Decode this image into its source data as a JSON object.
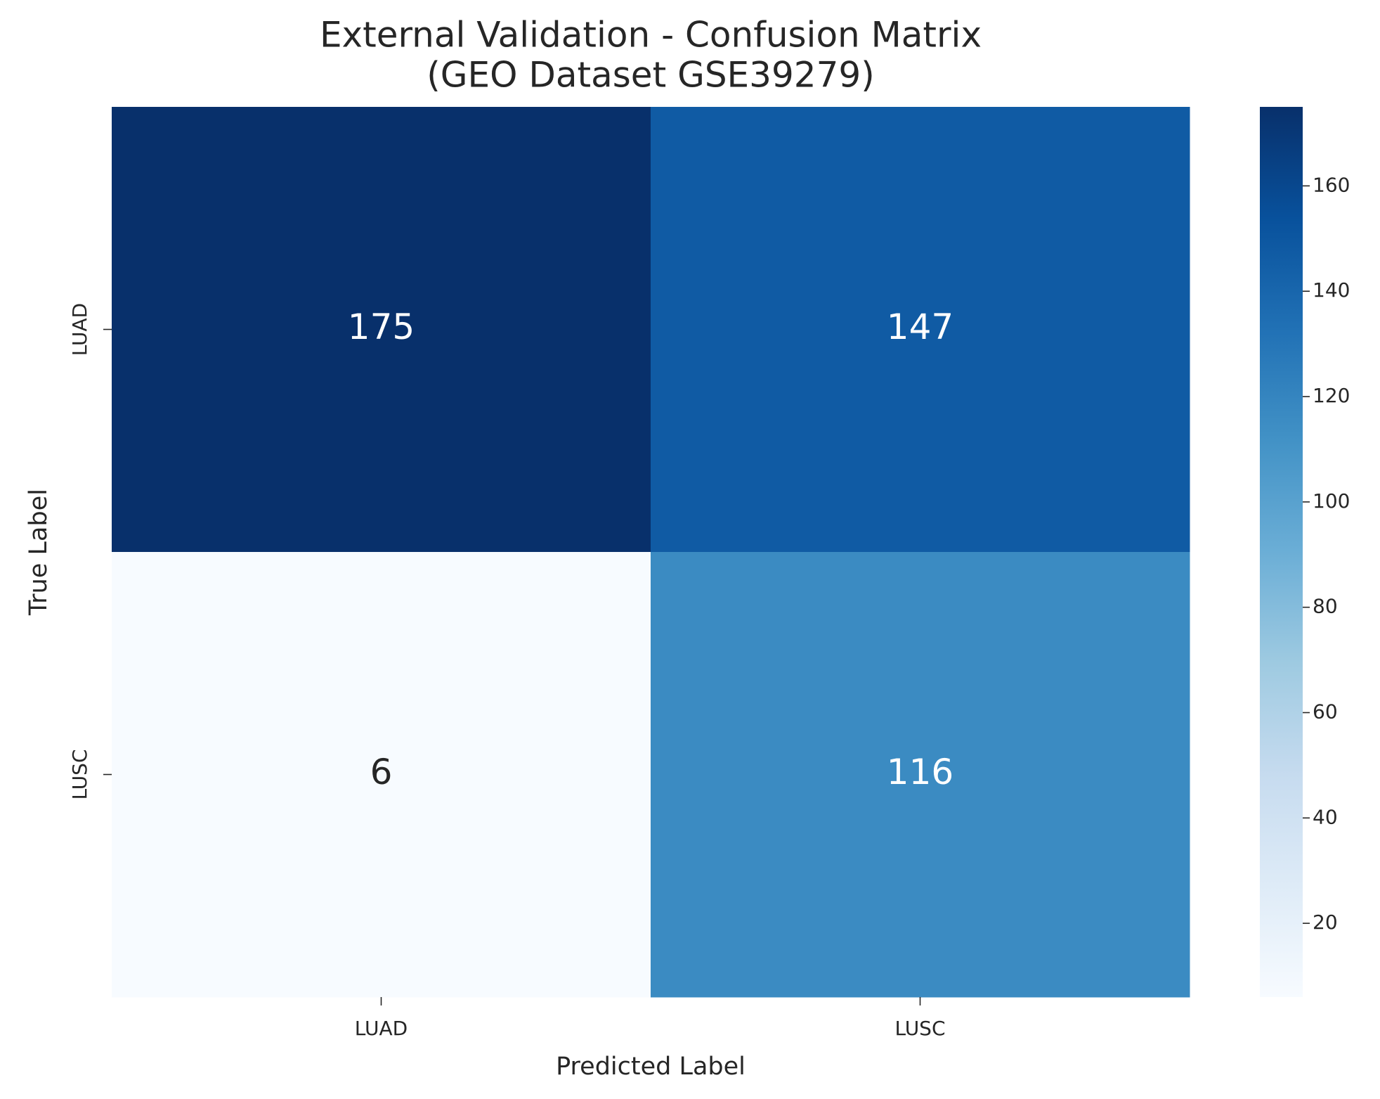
{
  "chart_data": {
    "type": "heatmap",
    "title": "External Validation - Confusion Matrix",
    "subtitle": "(GEO Dataset GSE39279)",
    "x_label": "Predicted Label",
    "y_label": "True Label",
    "x_categories": [
      "LUAD",
      "LUSC"
    ],
    "y_categories": [
      "LUAD",
      "LUSC"
    ],
    "values": [
      [
        175,
        147
      ],
      [
        6,
        116
      ]
    ],
    "zlim": [
      6,
      175
    ],
    "zticks": [
      20,
      40,
      60,
      80,
      100,
      120,
      140,
      160
    ],
    "colors": [
      "#f7fbff",
      "#deebf7",
      "#c6dbef",
      "#9ecae1",
      "#6baed6",
      "#4292c6",
      "#2171b5",
      "#08519c",
      "#08306b"
    ]
  }
}
